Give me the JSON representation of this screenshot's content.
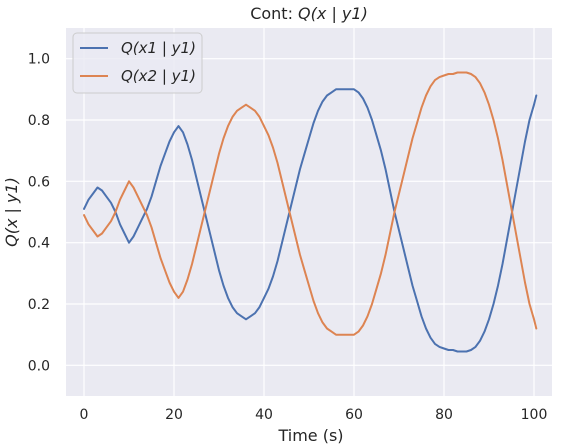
{
  "chart_data": {
    "type": "line",
    "title": {
      "prefix": "Cont: ",
      "math": "Q(x | y1)"
    },
    "xlabel": "Time (s)",
    "ylabel": "Q(x | y1)",
    "xlim": [
      -4,
      104
    ],
    "ylim": [
      -0.1,
      1.1
    ],
    "xticks": [
      0,
      20,
      40,
      60,
      80,
      100
    ],
    "yticks": [
      0.0,
      0.2,
      0.4,
      0.6,
      0.8,
      1.0
    ],
    "xtick_labels": [
      "0",
      "20",
      "40",
      "60",
      "80",
      "100"
    ],
    "ytick_labels": [
      "0.0",
      "0.2",
      "0.4",
      "0.6",
      "0.8",
      "1.0"
    ],
    "grid": true,
    "legend_position": "top-left",
    "background": "#eaeaf2",
    "series": [
      {
        "name": "Q(x1 | y1)",
        "color": "#4c72b0",
        "points": [
          [
            0,
            0.51
          ],
          [
            1,
            0.54
          ],
          [
            2,
            0.56
          ],
          [
            3,
            0.58
          ],
          [
            4,
            0.57
          ],
          [
            5,
            0.55
          ],
          [
            6,
            0.53
          ],
          [
            7,
            0.5
          ],
          [
            8,
            0.46
          ],
          [
            9,
            0.43
          ],
          [
            10,
            0.4
          ],
          [
            11,
            0.42
          ],
          [
            12,
            0.45
          ],
          [
            13,
            0.48
          ],
          [
            14,
            0.51
          ],
          [
            15,
            0.55
          ],
          [
            16,
            0.6
          ],
          [
            17,
            0.65
          ],
          [
            18,
            0.69
          ],
          [
            19,
            0.73
          ],
          [
            20,
            0.76
          ],
          [
            21,
            0.78
          ],
          [
            22,
            0.76
          ],
          [
            23,
            0.72
          ],
          [
            24,
            0.67
          ],
          [
            25,
            0.61
          ],
          [
            26,
            0.55
          ],
          [
            27,
            0.49
          ],
          [
            28,
            0.43
          ],
          [
            29,
            0.37
          ],
          [
            30,
            0.31
          ],
          [
            31,
            0.26
          ],
          [
            32,
            0.22
          ],
          [
            33,
            0.19
          ],
          [
            34,
            0.17
          ],
          [
            35,
            0.16
          ],
          [
            36,
            0.15
          ],
          [
            37,
            0.16
          ],
          [
            38,
            0.17
          ],
          [
            39,
            0.19
          ],
          [
            40,
            0.22
          ],
          [
            41,
            0.25
          ],
          [
            42,
            0.29
          ],
          [
            43,
            0.34
          ],
          [
            44,
            0.4
          ],
          [
            45,
            0.46
          ],
          [
            46,
            0.52
          ],
          [
            47,
            0.58
          ],
          [
            48,
            0.64
          ],
          [
            49,
            0.69
          ],
          [
            50,
            0.74
          ],
          [
            51,
            0.79
          ],
          [
            52,
            0.83
          ],
          [
            53,
            0.86
          ],
          [
            54,
            0.88
          ],
          [
            55,
            0.89
          ],
          [
            56,
            0.9
          ],
          [
            57,
            0.9
          ],
          [
            58,
            0.9
          ],
          [
            59,
            0.9
          ],
          [
            60,
            0.9
          ],
          [
            61,
            0.89
          ],
          [
            62,
            0.87
          ],
          [
            63,
            0.84
          ],
          [
            64,
            0.8
          ],
          [
            65,
            0.75
          ],
          [
            66,
            0.7
          ],
          [
            67,
            0.64
          ],
          [
            68,
            0.57
          ],
          [
            69,
            0.5
          ],
          [
            70,
            0.44
          ],
          [
            71,
            0.38
          ],
          [
            72,
            0.32
          ],
          [
            73,
            0.26
          ],
          [
            74,
            0.21
          ],
          [
            75,
            0.16
          ],
          [
            76,
            0.12
          ],
          [
            77,
            0.09
          ],
          [
            78,
            0.07
          ],
          [
            79,
            0.06
          ],
          [
            80,
            0.055
          ],
          [
            81,
            0.05
          ],
          [
            82,
            0.05
          ],
          [
            83,
            0.045
          ],
          [
            84,
            0.045
          ],
          [
            85,
            0.045
          ],
          [
            86,
            0.05
          ],
          [
            87,
            0.06
          ],
          [
            88,
            0.08
          ],
          [
            89,
            0.11
          ],
          [
            90,
            0.15
          ],
          [
            91,
            0.2
          ],
          [
            92,
            0.26
          ],
          [
            93,
            0.33
          ],
          [
            94,
            0.41
          ],
          [
            95,
            0.49
          ],
          [
            96,
            0.57
          ],
          [
            97,
            0.65
          ],
          [
            98,
            0.73
          ],
          [
            99,
            0.8
          ],
          [
            100,
            0.85
          ],
          [
            100.5,
            0.88
          ]
        ]
      },
      {
        "name": "Q(x2 | y1)",
        "color": "#dd8452",
        "points": [
          [
            0,
            0.49
          ],
          [
            1,
            0.46
          ],
          [
            2,
            0.44
          ],
          [
            3,
            0.42
          ],
          [
            4,
            0.43
          ],
          [
            5,
            0.45
          ],
          [
            6,
            0.47
          ],
          [
            7,
            0.5
          ],
          [
            8,
            0.54
          ],
          [
            9,
            0.57
          ],
          [
            10,
            0.6
          ],
          [
            11,
            0.58
          ],
          [
            12,
            0.55
          ],
          [
            13,
            0.52
          ],
          [
            14,
            0.49
          ],
          [
            15,
            0.45
          ],
          [
            16,
            0.4
          ],
          [
            17,
            0.35
          ],
          [
            18,
            0.31
          ],
          [
            19,
            0.27
          ],
          [
            20,
            0.24
          ],
          [
            21,
            0.22
          ],
          [
            22,
            0.24
          ],
          [
            23,
            0.28
          ],
          [
            24,
            0.33
          ],
          [
            25,
            0.39
          ],
          [
            26,
            0.45
          ],
          [
            27,
            0.51
          ],
          [
            28,
            0.57
          ],
          [
            29,
            0.63
          ],
          [
            30,
            0.69
          ],
          [
            31,
            0.74
          ],
          [
            32,
            0.78
          ],
          [
            33,
            0.81
          ],
          [
            34,
            0.83
          ],
          [
            35,
            0.84
          ],
          [
            36,
            0.85
          ],
          [
            37,
            0.84
          ],
          [
            38,
            0.83
          ],
          [
            39,
            0.81
          ],
          [
            40,
            0.78
          ],
          [
            41,
            0.75
          ],
          [
            42,
            0.71
          ],
          [
            43,
            0.66
          ],
          [
            44,
            0.6
          ],
          [
            45,
            0.54
          ],
          [
            46,
            0.48
          ],
          [
            47,
            0.42
          ],
          [
            48,
            0.36
          ],
          [
            49,
            0.31
          ],
          [
            50,
            0.26
          ],
          [
            51,
            0.21
          ],
          [
            52,
            0.17
          ],
          [
            53,
            0.14
          ],
          [
            54,
            0.12
          ],
          [
            55,
            0.11
          ],
          [
            56,
            0.1
          ],
          [
            57,
            0.1
          ],
          [
            58,
            0.1
          ],
          [
            59,
            0.1
          ],
          [
            60,
            0.1
          ],
          [
            61,
            0.11
          ],
          [
            62,
            0.13
          ],
          [
            63,
            0.16
          ],
          [
            64,
            0.2
          ],
          [
            65,
            0.25
          ],
          [
            66,
            0.3
          ],
          [
            67,
            0.36
          ],
          [
            68,
            0.43
          ],
          [
            69,
            0.5
          ],
          [
            70,
            0.56
          ],
          [
            71,
            0.62
          ],
          [
            72,
            0.68
          ],
          [
            73,
            0.74
          ],
          [
            74,
            0.79
          ],
          [
            75,
            0.84
          ],
          [
            76,
            0.88
          ],
          [
            77,
            0.91
          ],
          [
            78,
            0.93
          ],
          [
            79,
            0.94
          ],
          [
            80,
            0.945
          ],
          [
            81,
            0.95
          ],
          [
            82,
            0.95
          ],
          [
            83,
            0.955
          ],
          [
            84,
            0.955
          ],
          [
            85,
            0.955
          ],
          [
            86,
            0.95
          ],
          [
            87,
            0.94
          ],
          [
            88,
            0.92
          ],
          [
            89,
            0.89
          ],
          [
            90,
            0.85
          ],
          [
            91,
            0.8
          ],
          [
            92,
            0.74
          ],
          [
            93,
            0.67
          ],
          [
            94,
            0.59
          ],
          [
            95,
            0.51
          ],
          [
            96,
            0.43
          ],
          [
            97,
            0.35
          ],
          [
            98,
            0.27
          ],
          [
            99,
            0.2
          ],
          [
            100,
            0.15
          ],
          [
            100.5,
            0.12
          ]
        ]
      }
    ]
  }
}
